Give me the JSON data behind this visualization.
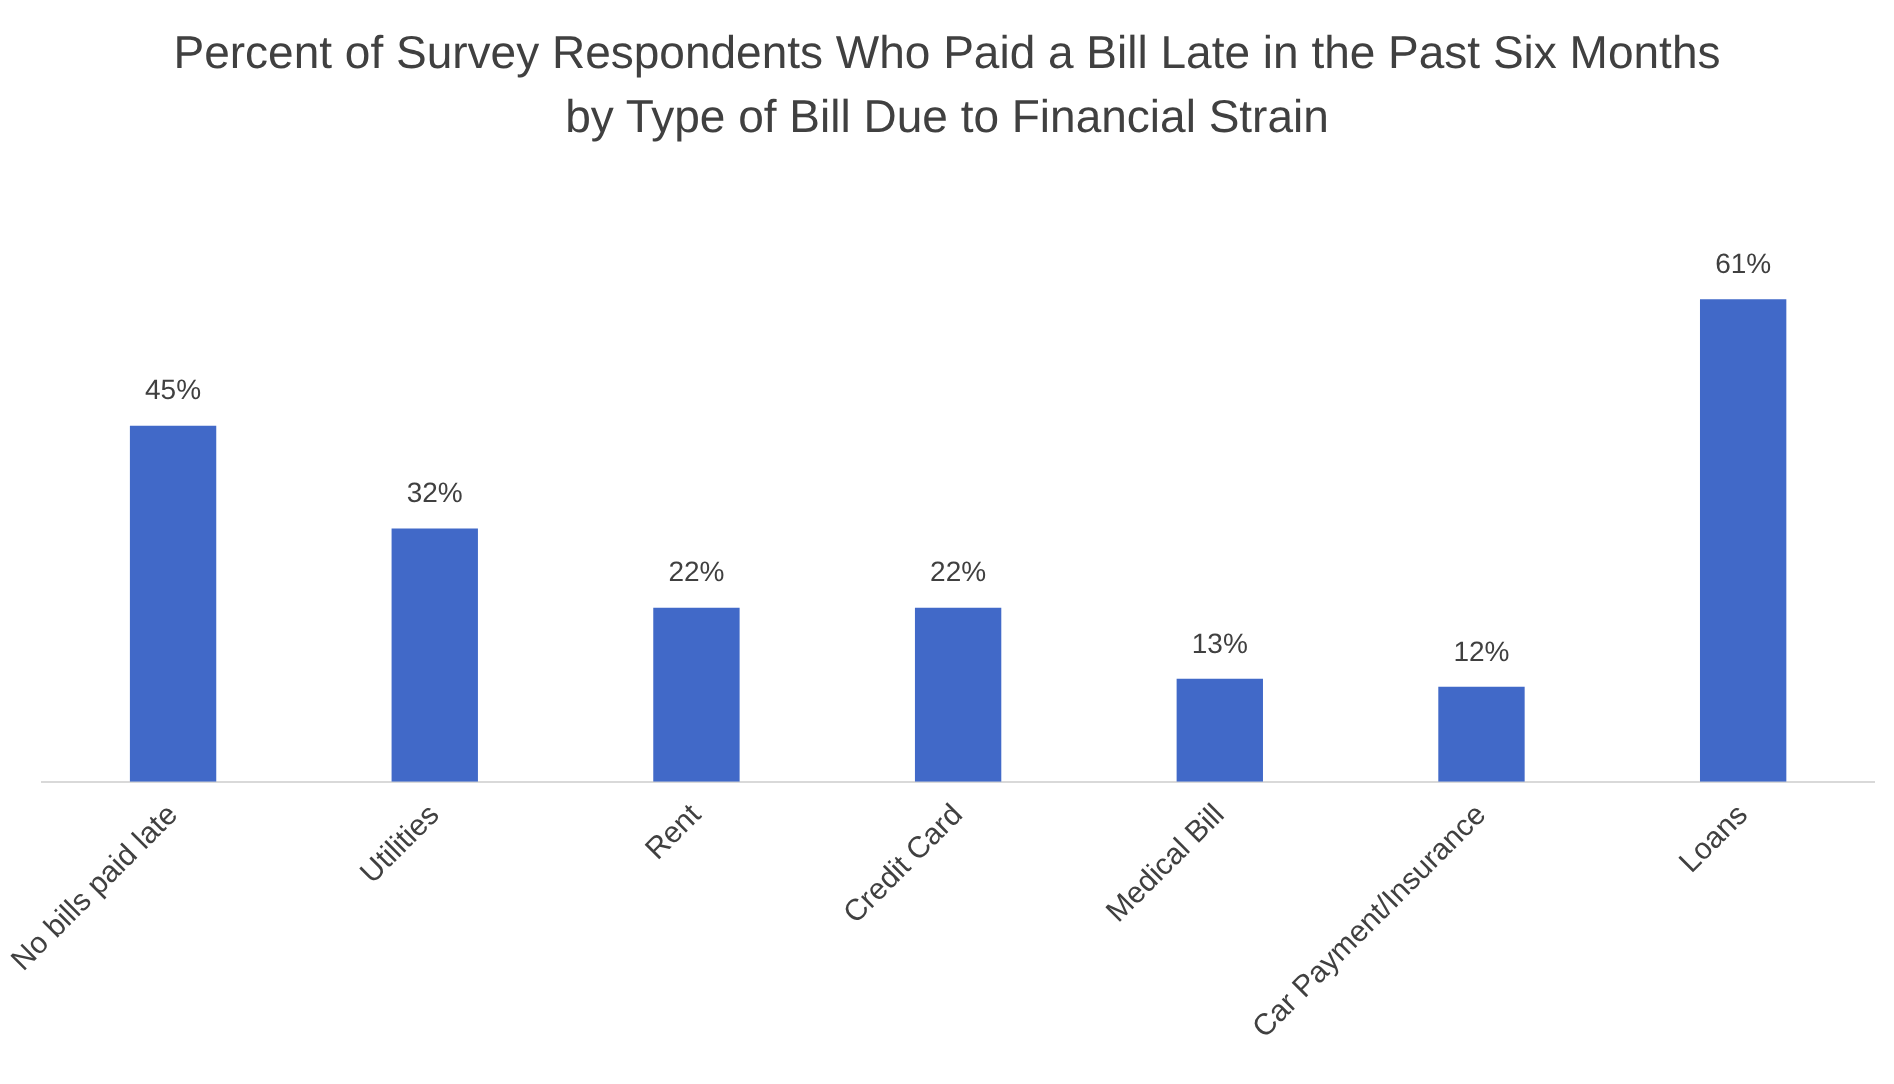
{
  "chart_data": {
    "type": "bar",
    "title": "Percent of Survey Respondents Who Paid a Bill Late in the Past Six Months by Type of Bill Due to Financial Strain",
    "categories": [
      "No bills paid late",
      "Utilities",
      "Rent",
      "Credit Card",
      "Medical Bill",
      "Car Payment/Insurance",
      "Loans"
    ],
    "values": [
      45,
      32,
      22,
      22,
      13,
      12,
      61
    ],
    "value_labels": [
      "45%",
      "32%",
      "22%",
      "22%",
      "13%",
      "12%",
      "61%"
    ],
    "color": "#4169c8",
    "grid": false,
    "legend": false
  }
}
